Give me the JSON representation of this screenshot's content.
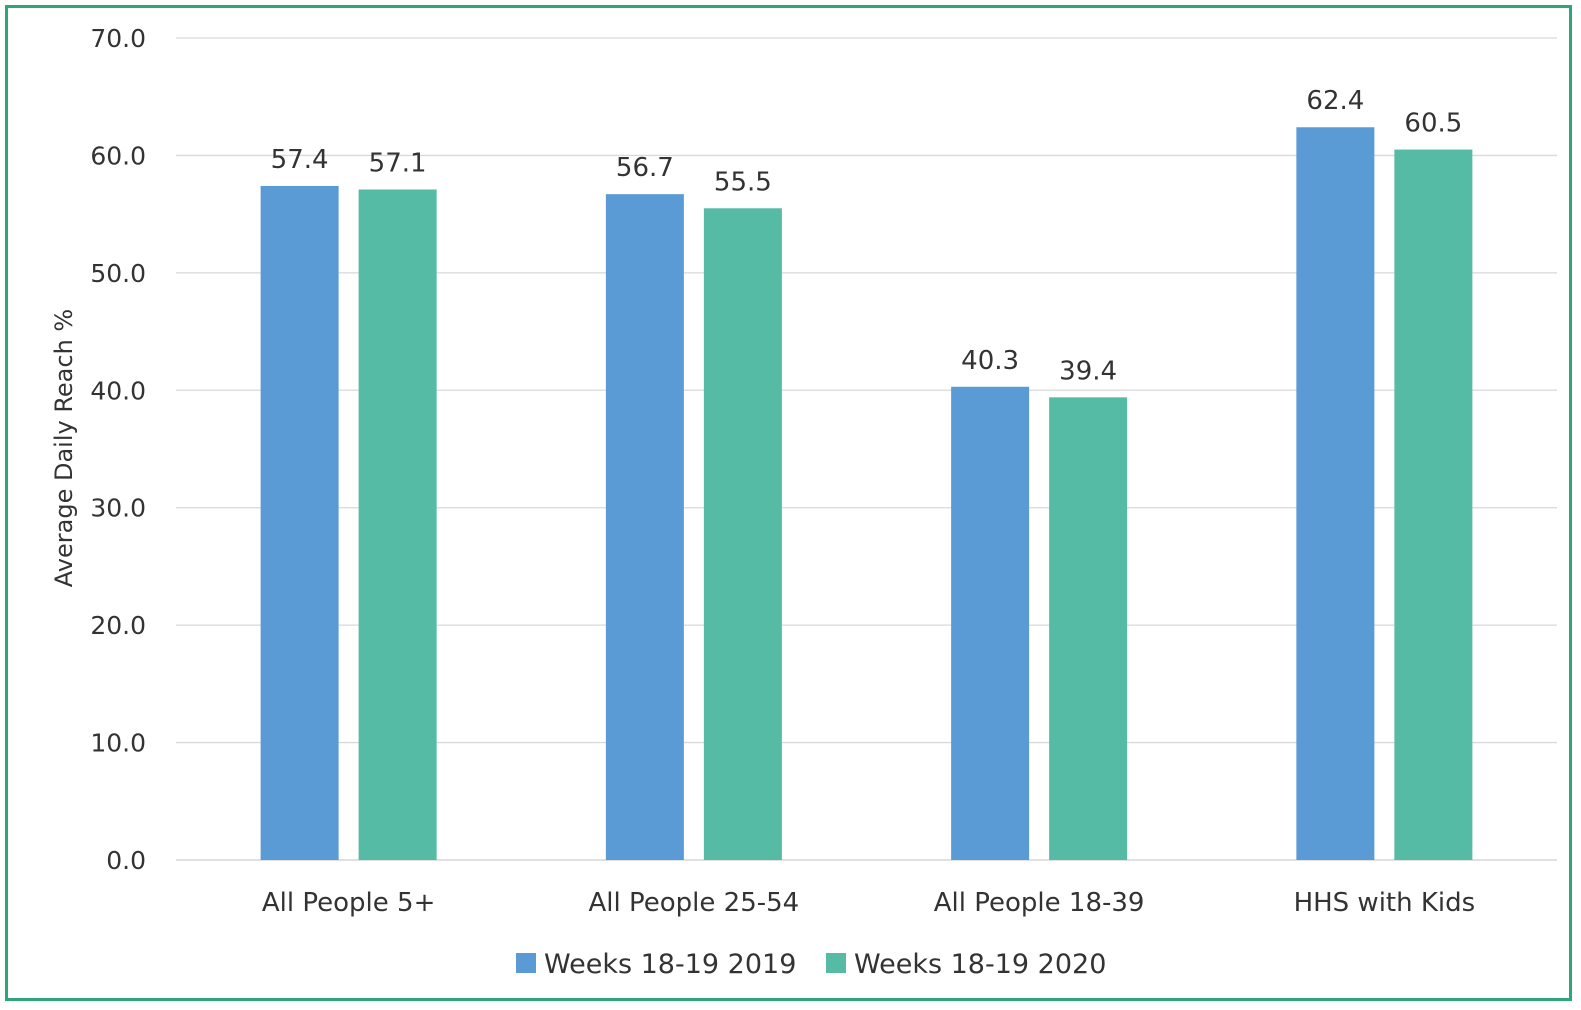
{
  "chart_data": {
    "type": "bar",
    "title": "",
    "xlabel": "",
    "ylabel": "Average Daily Reach %",
    "ylim": [
      0,
      70
    ],
    "yticks": [
      "0.0",
      "10.0",
      "20.0",
      "30.0",
      "40.0",
      "50.0",
      "60.0",
      "70.0"
    ],
    "categories": [
      "All People 5+",
      "All People 25-54",
      "All People 18-39",
      "HHS with Kids"
    ],
    "series": [
      {
        "name": "Weeks 18-19 2019",
        "color": "#5b9bd5",
        "values": [
          57.4,
          56.7,
          40.3,
          62.4
        ],
        "labels": [
          "57.4",
          "56.7",
          "40.3",
          "62.4"
        ]
      },
      {
        "name": "Weeks 18-19 2020",
        "color": "#55bba5",
        "values": [
          57.1,
          55.5,
          39.4,
          60.5
        ],
        "labels": [
          "57.1",
          "55.5",
          "39.4",
          "60.5"
        ]
      }
    ],
    "grid": true,
    "legend_position": "bottom",
    "frame_color": "#2ea678"
  }
}
